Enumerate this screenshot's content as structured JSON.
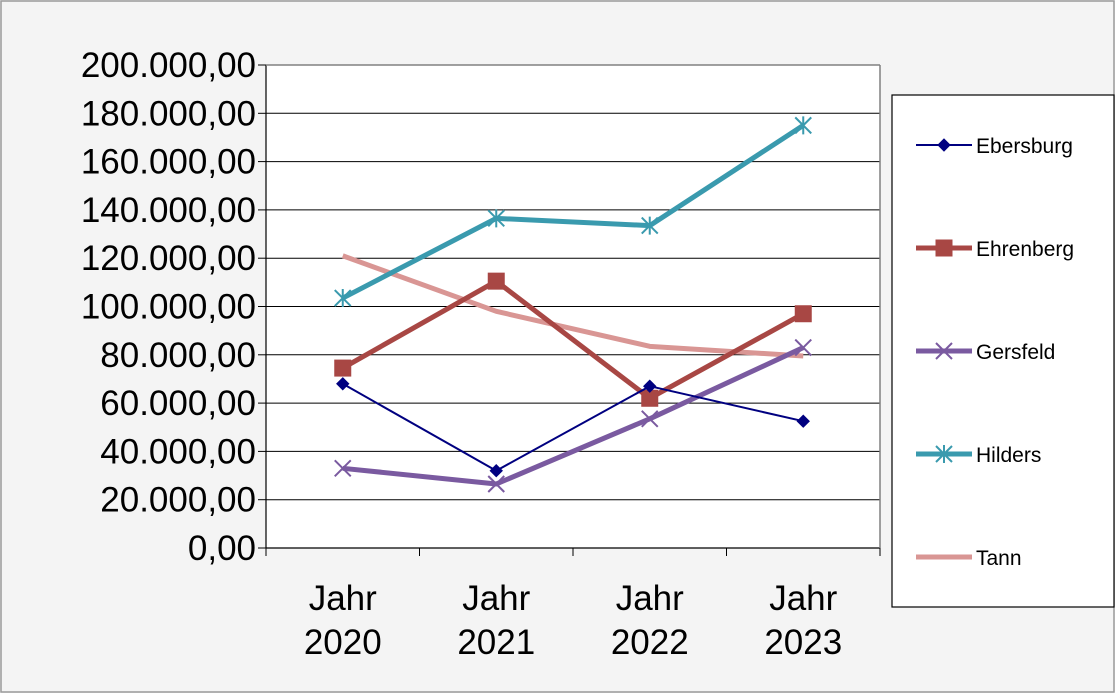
{
  "chart_data": {
    "type": "line",
    "categories": [
      "Jahr 2020",
      "Jahr 2021",
      "Jahr 2022",
      "Jahr 2023"
    ],
    "ylim": [
      0,
      200000
    ],
    "yticks": [
      "0,00",
      "20.000,00",
      "40.000,00",
      "60.000,00",
      "80.000,00",
      "100.000,00",
      "120.000,00",
      "140.000,00",
      "160.000,00",
      "180.000,00",
      "200.000,00"
    ],
    "grid": true,
    "legend_position": "right",
    "series": [
      {
        "name": "Ebersburg",
        "values": [
          68000,
          32000,
          67000,
          52500
        ],
        "color": "#000080",
        "marker": "diamond",
        "thick": false
      },
      {
        "name": "Ehrenberg",
        "values": [
          74500,
          110500,
          62000,
          97000
        ],
        "color": "#a84744",
        "marker": "square",
        "thick": true
      },
      {
        "name": "Gersfeld",
        "values": [
          33000,
          26500,
          53500,
          83000
        ],
        "color": "#7a5aa0",
        "marker": "x",
        "thick": true
      },
      {
        "name": "Hilders",
        "values": [
          103500,
          136500,
          133500,
          175000
        ],
        "color": "#3a9aae",
        "marker": "asterisk",
        "thick": true
      },
      {
        "name": "Tann",
        "values": [
          121000,
          98000,
          83500,
          79500
        ],
        "color": "#d99694",
        "marker": "none",
        "thick": true
      }
    ]
  }
}
